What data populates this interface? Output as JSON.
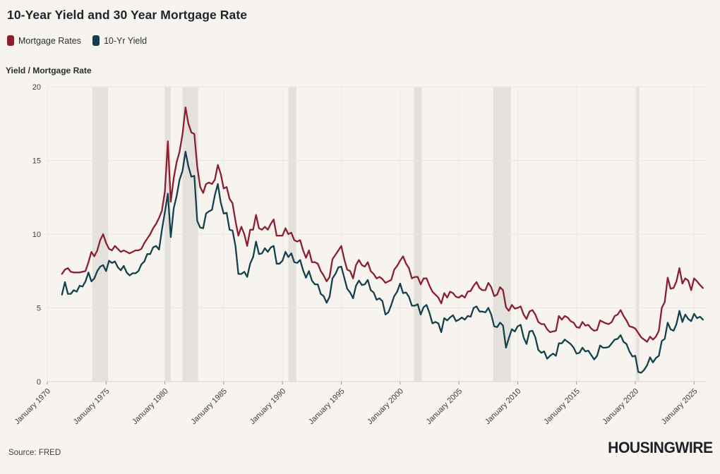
{
  "header": {
    "title": "10-Year Yield and 30 Year Mortgage Rate"
  },
  "footer": {
    "source": "Source: FRED",
    "brand": "HOUSINGWIRE"
  },
  "colors": {
    "background": "#f7f4ef",
    "recession_band": "#e4e1dd",
    "grid": "#eae7e2",
    "baseline": "#d9d6d0",
    "tick_text": "#3e3e3e",
    "title_text": "#20252c",
    "mortgage_line": "#8b1e31",
    "yield_line": "#15404e"
  },
  "chart_data": {
    "type": "line",
    "title": "10-Year Yield and 30 Year Mortgage Rate",
    "xlabel": "",
    "ylabel": "Yield / Mortgage Rate",
    "ylim": [
      0,
      20
    ],
    "yticks": [
      0,
      5,
      10,
      15,
      20
    ],
    "xlim": [
      1970,
      2026
    ],
    "xtick_years": [
      1970,
      1975,
      1980,
      1985,
      1990,
      1995,
      2000,
      2005,
      2010,
      2015,
      2020,
      2025
    ],
    "xticks": [
      "January 1970",
      "January 1975",
      "January 1980",
      "January 1985",
      "January 1990",
      "January 1995",
      "January 2000",
      "January 2005",
      "January 2010",
      "January 2015",
      "January 2020",
      "January 2025"
    ],
    "grid": true,
    "legend_position": "top-left",
    "x_start": 1971.25,
    "x_step": 0.25,
    "band_color": "#e4e1dd",
    "recession_bands": [
      [
        1973.83,
        1975.17
      ],
      [
        1980.0,
        1980.5
      ],
      [
        1981.5,
        1982.83
      ],
      [
        1990.5,
        1991.17
      ],
      [
        2001.17,
        2001.83
      ],
      [
        2007.92,
        2009.42
      ],
      [
        2020.08,
        2020.33
      ]
    ],
    "series": [
      {
        "name": "Mortgage Rates",
        "color": "#8b1e31",
        "values": [
          7.3,
          7.6,
          7.7,
          7.45,
          7.4,
          7.4,
          7.4,
          7.45,
          7.5,
          8.1,
          8.8,
          8.5,
          8.9,
          9.6,
          10.0,
          9.4,
          9.0,
          8.9,
          9.2,
          9.0,
          8.8,
          8.9,
          8.8,
          8.7,
          8.8,
          8.9,
          8.9,
          9.0,
          9.4,
          9.7,
          10.0,
          10.4,
          10.7,
          11.1,
          11.6,
          12.9,
          16.3,
          12.2,
          13.8,
          14.9,
          15.6,
          16.8,
          18.6,
          17.5,
          16.9,
          16.8,
          14.6,
          13.2,
          12.8,
          13.4,
          13.5,
          13.4,
          13.7,
          14.7,
          14.1,
          13.1,
          13.2,
          12.4,
          12.1,
          10.9,
          9.9,
          10.5,
          10.0,
          9.2,
          10.3,
          10.3,
          11.3,
          10.4,
          10.3,
          10.5,
          10.3,
          10.7,
          11.0,
          9.9,
          9.9,
          9.9,
          10.4,
          10.0,
          10.1,
          9.6,
          9.5,
          9.6,
          8.9,
          8.4,
          8.9,
          8.1,
          8.1,
          8.0,
          7.5,
          7.2,
          6.8,
          7.1,
          8.3,
          8.6,
          8.9,
          9.2,
          8.3,
          7.6,
          7.5,
          7.0,
          7.9,
          8.25,
          7.9,
          7.8,
          8.1,
          7.5,
          7.3,
          7.0,
          7.1,
          6.95,
          6.7,
          6.8,
          6.9,
          7.6,
          7.85,
          8.2,
          8.5,
          8.0,
          7.7,
          7.0,
          7.1,
          7.1,
          6.6,
          7.0,
          7.0,
          6.5,
          6.1,
          5.9,
          5.7,
          5.3,
          6.0,
          5.7,
          6.1,
          6.0,
          5.75,
          5.7,
          5.85,
          5.7,
          6.1,
          6.15,
          6.5,
          6.75,
          6.35,
          6.2,
          6.2,
          6.7,
          6.4,
          5.8,
          5.9,
          6.4,
          6.2,
          5.05,
          4.8,
          5.2,
          4.95,
          5.0,
          5.1,
          4.55,
          4.25,
          4.75,
          4.85,
          4.55,
          4.05,
          3.9,
          3.9,
          3.55,
          3.35,
          3.4,
          3.45,
          4.45,
          4.2,
          4.45,
          4.35,
          4.1,
          4.0,
          3.7,
          3.65,
          4.05,
          3.8,
          3.85,
          3.6,
          3.45,
          3.5,
          4.15,
          4.05,
          3.95,
          3.9,
          4.05,
          4.45,
          4.55,
          4.85,
          4.45,
          4.15,
          3.75,
          3.7,
          3.6,
          3.3,
          3.0,
          2.85,
          2.7,
          3.05,
          2.85,
          3.05,
          3.45,
          5.0,
          5.4,
          7.05,
          6.3,
          6.35,
          6.8,
          7.7,
          6.65,
          7.0,
          6.85,
          6.2,
          7.0,
          6.8,
          6.55,
          6.35
        ]
      },
      {
        "name": "10-Yr Yield",
        "color": "#15404e",
        "values": [
          5.9,
          6.75,
          5.95,
          5.95,
          6.2,
          6.1,
          6.5,
          6.45,
          6.8,
          7.4,
          6.8,
          7.0,
          7.5,
          7.8,
          7.9,
          7.5,
          8.2,
          8.05,
          8.15,
          7.75,
          7.55,
          7.85,
          7.4,
          7.2,
          7.35,
          7.35,
          7.5,
          7.95,
          8.15,
          8.65,
          8.65,
          9.1,
          9.2,
          8.95,
          10.3,
          11.5,
          12.75,
          9.8,
          11.75,
          12.6,
          13.7,
          14.3,
          15.6,
          14.6,
          13.9,
          13.95,
          10.9,
          10.45,
          10.4,
          11.4,
          11.55,
          11.65,
          12.65,
          13.4,
          12.15,
          11.4,
          11.45,
          10.3,
          10.25,
          9.2,
          7.3,
          7.3,
          7.45,
          7.1,
          8.0,
          8.45,
          9.5,
          8.65,
          8.7,
          9.05,
          8.8,
          9.1,
          9.2,
          8.0,
          8.0,
          8.2,
          8.8,
          8.45,
          8.7,
          8.1,
          8.05,
          8.25,
          7.55,
          7.05,
          7.5,
          6.85,
          6.6,
          6.6,
          5.95,
          5.8,
          5.35,
          5.75,
          7.0,
          7.3,
          7.75,
          7.8,
          7.05,
          6.3,
          6.05,
          5.65,
          6.5,
          6.85,
          6.55,
          6.6,
          6.9,
          6.2,
          6.05,
          5.55,
          5.65,
          5.45,
          4.55,
          4.7,
          5.2,
          5.8,
          6.1,
          6.65,
          6.0,
          6.05,
          5.75,
          5.15,
          5.15,
          5.25,
          4.55,
          5.05,
          5.2,
          4.65,
          3.95,
          4.05,
          3.95,
          3.35,
          4.3,
          4.15,
          4.35,
          4.5,
          4.1,
          4.2,
          4.35,
          4.2,
          4.45,
          4.4,
          5.0,
          5.1,
          4.75,
          4.75,
          4.7,
          5.0,
          4.55,
          3.75,
          3.7,
          4.0,
          3.8,
          2.3,
          2.95,
          3.55,
          3.4,
          3.75,
          3.85,
          3.0,
          2.55,
          3.4,
          3.45,
          3.0,
          2.15,
          1.95,
          2.05,
          1.55,
          1.75,
          1.9,
          1.75,
          2.6,
          2.6,
          2.85,
          2.7,
          2.55,
          2.3,
          1.9,
          1.95,
          2.3,
          2.05,
          2.1,
          1.8,
          1.5,
          1.75,
          2.45,
          2.3,
          2.3,
          2.35,
          2.6,
          2.85,
          2.9,
          3.15,
          2.7,
          2.55,
          2.05,
          1.7,
          1.75,
          0.65,
          0.6,
          0.8,
          1.1,
          1.65,
          1.3,
          1.6,
          1.75,
          2.75,
          2.9,
          4.0,
          3.55,
          3.45,
          3.9,
          4.8,
          4.05,
          4.55,
          4.25,
          4.1,
          4.6,
          4.3,
          4.4,
          4.2
        ]
      }
    ]
  }
}
